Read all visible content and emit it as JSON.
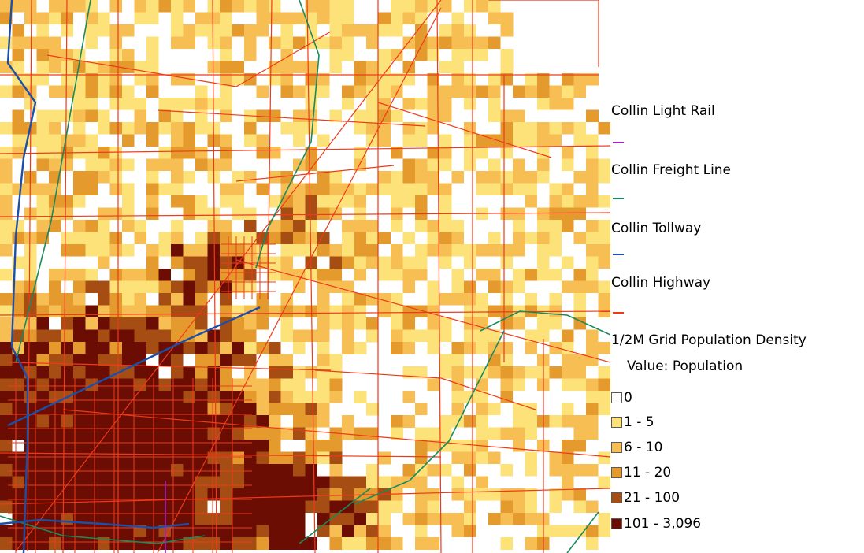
{
  "map": {
    "density_classes": [
      {
        "label": "0",
        "color": "#ffffff"
      },
      {
        "label": "1 - 5",
        "color": "#fde27a"
      },
      {
        "label": "6 - 10",
        "color": "#f7bf53"
      },
      {
        "label": "11 - 20",
        "color": "#e59a2e"
      },
      {
        "label": "21 - 100",
        "color": "#a64d14"
      },
      {
        "label": "101 - 3,096",
        "color": "#6b0d02"
      }
    ],
    "highway_color": "#ee3a1a",
    "tollway_color": "#1b4fa8",
    "freight_color": "#1a8a5c",
    "lightrail_color": "#a020c0"
  },
  "legend": {
    "layers": [
      {
        "name": "Collin Light Rail",
        "color": "#a020c0"
      },
      {
        "name": "Collin Freight Line",
        "color": "#1a8a5c"
      },
      {
        "name": "Collin Tollway",
        "color": "#1b4fa8"
      },
      {
        "name": "Collin Highway",
        "color": "#ee3a1a"
      }
    ],
    "grid_title": "1/2M Grid Population Density",
    "value_label": "Value: Population"
  }
}
